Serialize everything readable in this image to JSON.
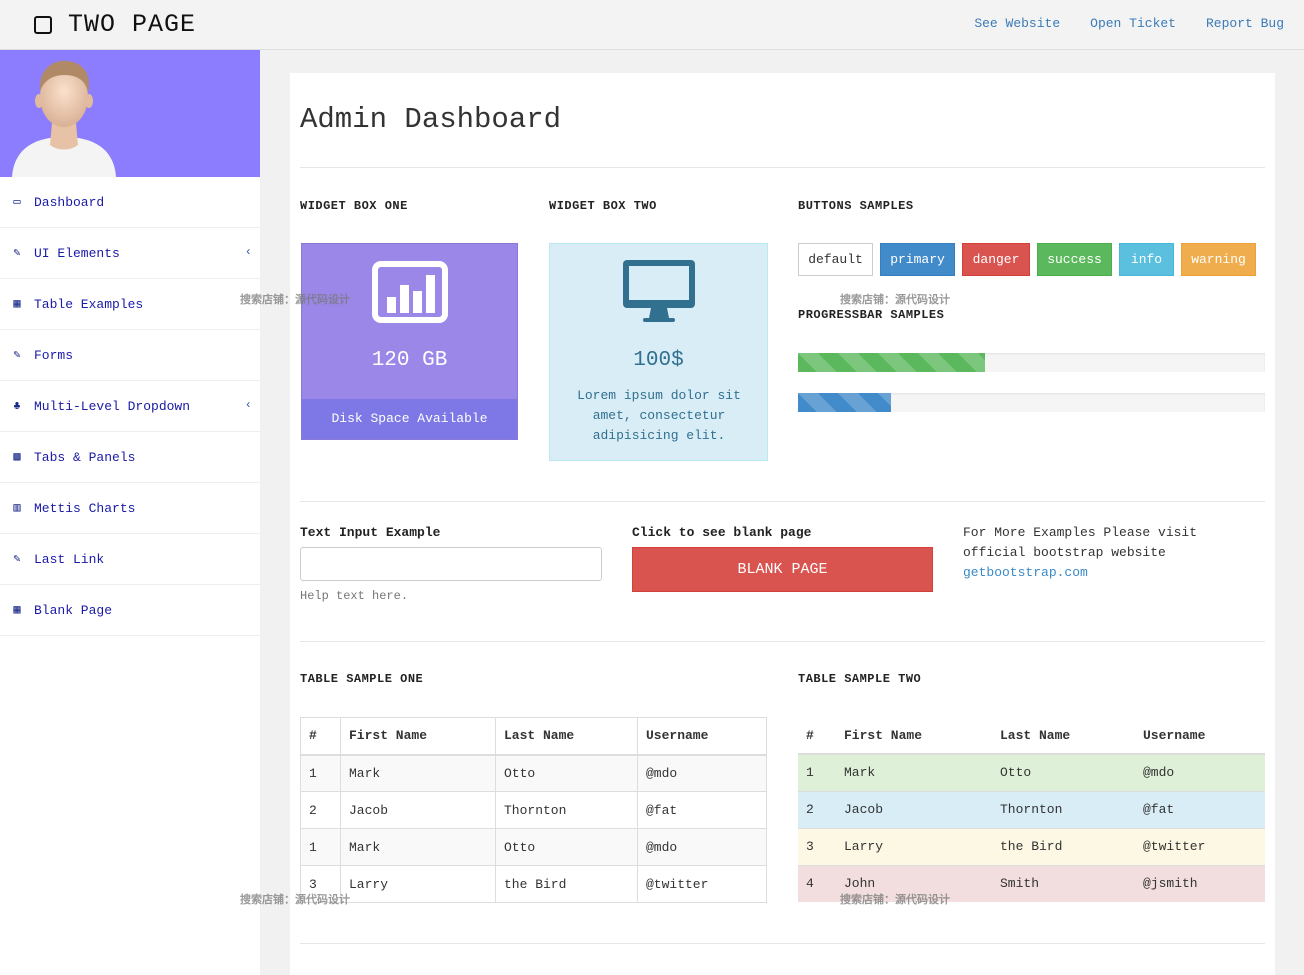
{
  "brand": {
    "title": "TWO PAGE"
  },
  "toplinks": [
    "See Website",
    "Open Ticket",
    "Report Bug"
  ],
  "sidebar": {
    "items": [
      {
        "label": "Dashboard",
        "icon": "desktop-icon",
        "glyph": "▭",
        "chevron": false
      },
      {
        "label": "UI Elements",
        "icon": "edit-icon",
        "glyph": "✎",
        "chevron": true
      },
      {
        "label": "Table Examples",
        "icon": "table-icon",
        "glyph": "▦",
        "chevron": false
      },
      {
        "label": "Forms",
        "icon": "edit-icon",
        "glyph": "✎",
        "chevron": false
      },
      {
        "label": "Multi-Level Dropdown",
        "icon": "sitemap-icon",
        "glyph": "♣",
        "chevron": true
      },
      {
        "label": "Tabs & Panels",
        "icon": "qrcode-icon",
        "glyph": "▩",
        "chevron": false
      },
      {
        "label": "Mettis Charts",
        "icon": "bar-chart-icon",
        "glyph": "▥",
        "chevron": false
      },
      {
        "label": "Last Link",
        "icon": "edit-icon",
        "glyph": "✎",
        "chevron": false
      },
      {
        "label": "Blank Page",
        "icon": "table-icon",
        "glyph": "▦",
        "chevron": false
      }
    ],
    "chevron_glyph": "‹"
  },
  "page": {
    "title": "Admin Dashboard"
  },
  "widgets": {
    "one": {
      "heading": "WIDGET BOX ONE",
      "value": "120 GB",
      "footer": "Disk Space Available",
      "icon": "bar-chart-icon"
    },
    "two": {
      "heading": "WIDGET BOX TWO",
      "value": "100$",
      "text": "Lorem ipsum dolor sit amet, consectetur adipisicing elit.",
      "icon": "desktop-icon"
    }
  },
  "buttons": {
    "heading": "BUTTONS SAMPLES",
    "items": [
      "default",
      "primary",
      "danger",
      "success",
      "info",
      "warning"
    ]
  },
  "progress": {
    "heading": "PROGRESSBAR SAMPLES",
    "bars": [
      {
        "style": "success",
        "percent": 40
      },
      {
        "style": "primary",
        "percent": 20
      }
    ]
  },
  "form": {
    "input_label": "Text Input Example",
    "input_value": "",
    "help_text": "Help text here.",
    "blank_label": "Click to see blank page",
    "blank_button": "BLANK PAGE",
    "more_text": "For More Examples Please visit official bootstrap website ",
    "more_link": "getbootstrap.com"
  },
  "table_one": {
    "heading": "TABLE SAMPLE ONE",
    "columns": [
      "#",
      "First Name",
      "Last Name",
      "Username"
    ],
    "rows": [
      [
        "1",
        "Mark",
        "Otto",
        "@mdo"
      ],
      [
        "2",
        "Jacob",
        "Thornton",
        "@fat"
      ],
      [
        "1",
        "Mark",
        "Otto",
        "@mdo"
      ],
      [
        "3",
        "Larry",
        "the Bird",
        "@twitter"
      ]
    ]
  },
  "table_two": {
    "heading": "TABLE SAMPLE TWO",
    "columns": [
      "#",
      "First Name",
      "Last Name",
      "Username"
    ],
    "rows": [
      {
        "style": "success",
        "cells": [
          "1",
          "Mark",
          "Otto",
          "@mdo"
        ]
      },
      {
        "style": "info",
        "cells": [
          "2",
          "Jacob",
          "Thornton",
          "@fat"
        ]
      },
      {
        "style": "warning",
        "cells": [
          "3",
          "Larry",
          "the Bird",
          "@twitter"
        ]
      },
      {
        "style": "danger",
        "cells": [
          "4",
          "John",
          "Smith",
          "@jsmith"
        ]
      }
    ]
  },
  "watermark": "搜索店铺：源代码设计",
  "colors": {
    "profile_bg": "#8c7dff",
    "widget_one_bg": "#9b87e8",
    "widget_two_bg": "#d9edf7",
    "link": "#3a7bb8"
  }
}
